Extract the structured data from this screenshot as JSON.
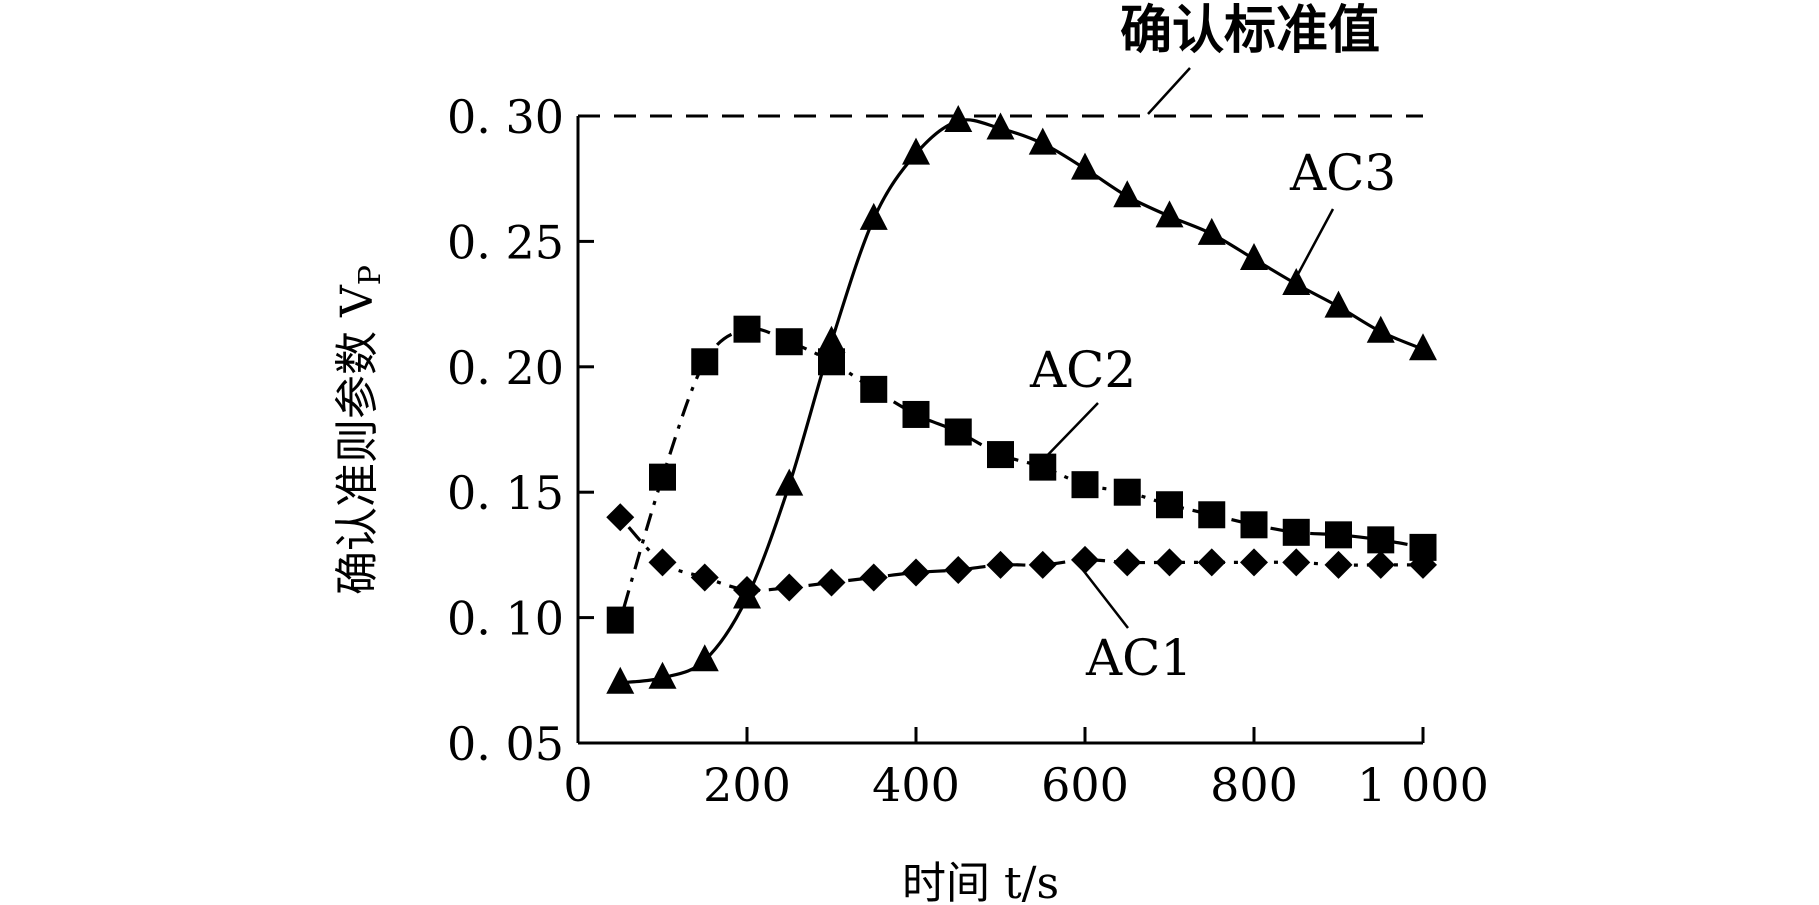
{
  "chart_data": {
    "type": "line",
    "title": "",
    "xlabel": "时间 t/s",
    "ylabel": "确认准则参数 V",
    "ylabel_subscript": "P",
    "xlim": [
      0,
      1000
    ],
    "ylim": [
      0.05,
      0.3
    ],
    "x_ticks": [
      0,
      200,
      400,
      600,
      800,
      1000
    ],
    "x_tick_labels": [
      "0",
      "200",
      "400",
      "600",
      "800",
      "1 000"
    ],
    "y_ticks": [
      0.05,
      0.1,
      0.15,
      0.2,
      0.25,
      0.3
    ],
    "y_tick_labels": [
      "0. 05",
      "0. 10",
      "0. 15",
      "0. 20",
      "0. 25",
      "0. 30"
    ],
    "grid": false,
    "legend": "none",
    "reference_line": {
      "value": 0.3,
      "label": "确认标准值",
      "style": "dashed"
    },
    "series": [
      {
        "name": "AC1",
        "marker": "diamond",
        "line": "dash-dot",
        "x": [
          50,
          100,
          150,
          200,
          250,
          300,
          350,
          400,
          450,
          500,
          550,
          600,
          650,
          700,
          750,
          800,
          850,
          900,
          950,
          1000
        ],
        "values": [
          0.14,
          0.122,
          0.116,
          0.111,
          0.112,
          0.114,
          0.116,
          0.118,
          0.119,
          0.121,
          0.121,
          0.123,
          0.122,
          0.122,
          0.122,
          0.122,
          0.122,
          0.121,
          0.121,
          0.121
        ]
      },
      {
        "name": "AC2",
        "marker": "square",
        "line": "dash-dot",
        "x": [
          50,
          100,
          150,
          200,
          250,
          300,
          350,
          400,
          450,
          500,
          550,
          600,
          650,
          700,
          750,
          800,
          850,
          900,
          950,
          1000
        ],
        "values": [
          0.099,
          0.156,
          0.202,
          0.215,
          0.21,
          0.202,
          0.191,
          0.181,
          0.174,
          0.165,
          0.16,
          0.153,
          0.15,
          0.145,
          0.141,
          0.137,
          0.134,
          0.133,
          0.131,
          0.128
        ]
      },
      {
        "name": "AC3",
        "marker": "triangle",
        "line": "solid",
        "x": [
          50,
          100,
          150,
          200,
          250,
          300,
          350,
          400,
          450,
          500,
          550,
          600,
          650,
          700,
          750,
          800,
          850,
          900,
          950,
          1000
        ],
        "values": [
          0.074,
          0.076,
          0.083,
          0.108,
          0.153,
          0.21,
          0.259,
          0.285,
          0.298,
          0.295,
          0.289,
          0.279,
          0.268,
          0.26,
          0.253,
          0.243,
          0.233,
          0.224,
          0.214,
          0.207
        ]
      }
    ]
  }
}
